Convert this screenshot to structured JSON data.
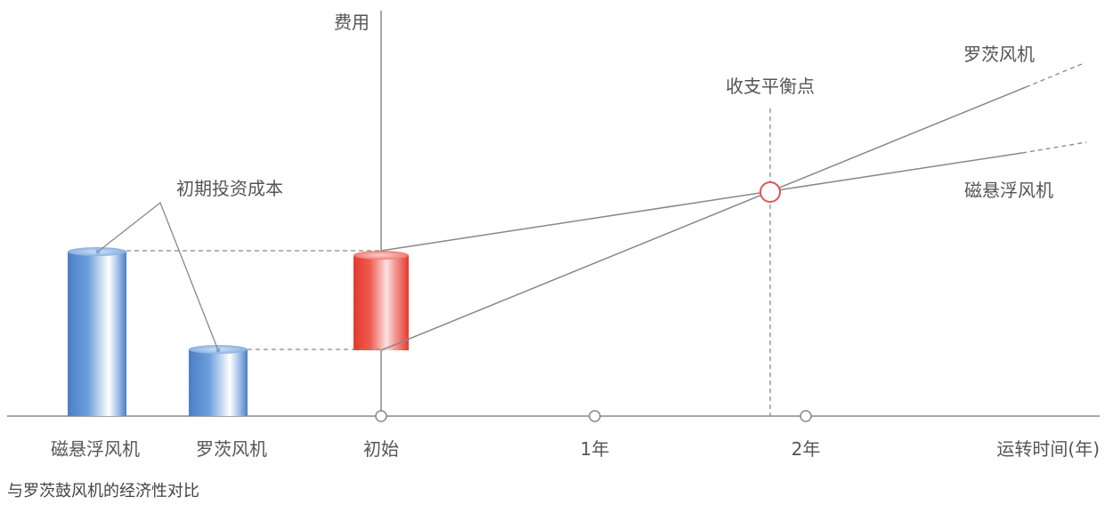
{
  "caption": "与罗茨鼓风机的经济性对比",
  "axes": {
    "y_label": "费用",
    "x_label": "运转时间(年)",
    "x_ticks": [
      "初始",
      "1年",
      "2年"
    ]
  },
  "bars": {
    "maglev_label": "磁悬浮风机",
    "roots_label": "罗茨风机"
  },
  "annotations": {
    "initial_cost": "初期投资成本",
    "break_even": "收支平衡点",
    "line_roots": "罗茨风机",
    "line_maglev": "磁悬浮风机"
  },
  "colors": {
    "maglev_bar": "#5b8fd0",
    "increment_bar": "#e8453c",
    "axis": "#888888",
    "break_even_marker": "#e05555"
  }
}
